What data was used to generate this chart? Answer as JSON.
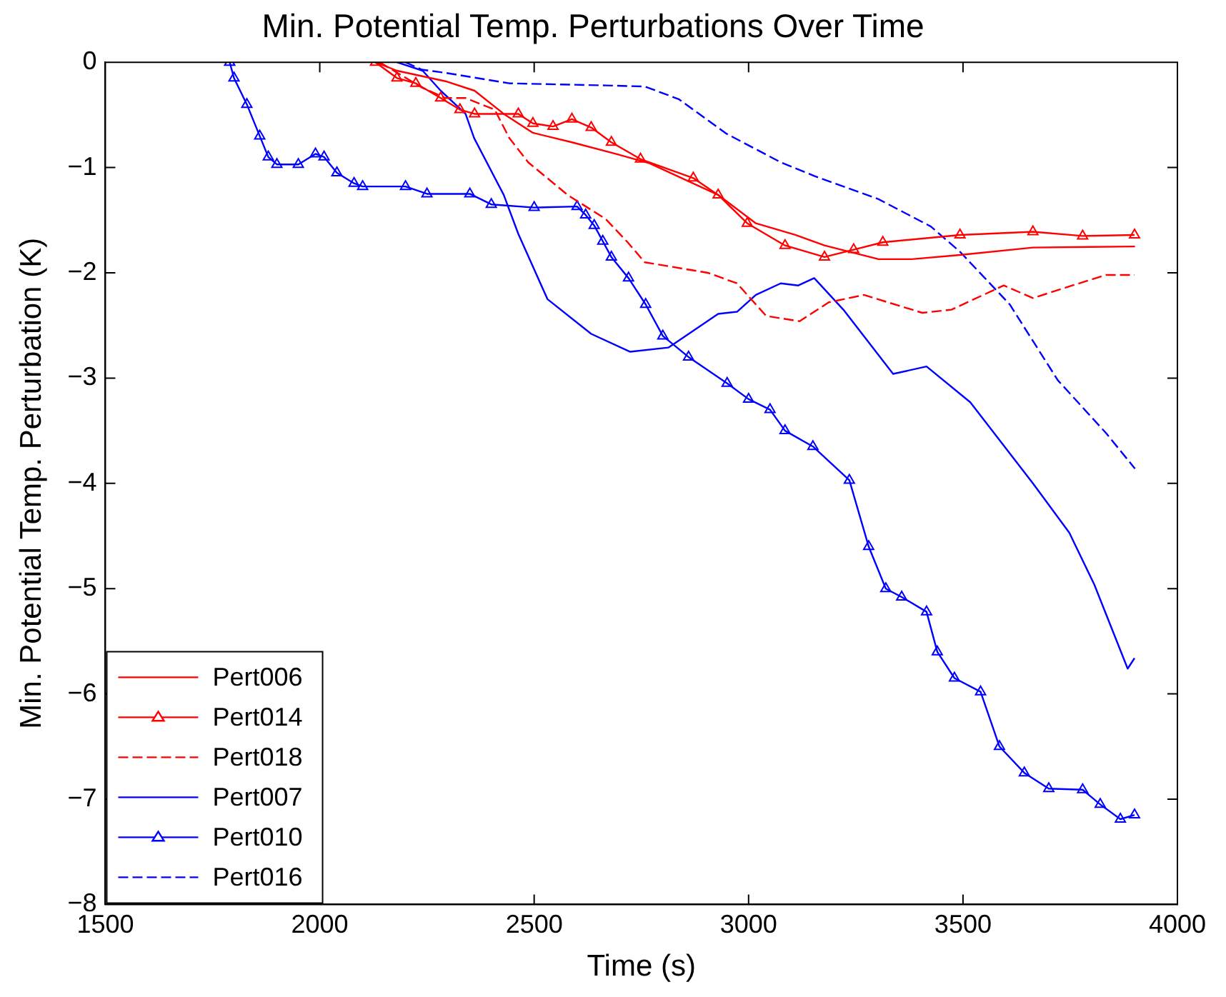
{
  "chart_data": {
    "type": "line",
    "title": "Min. Potential Temp. Perturbations Over Time",
    "xlabel": "Time (s)",
    "ylabel": "Min. Potential Temp. Perturbation (K)",
    "xlim": [
      1500,
      4000
    ],
    "xticks": [
      1500,
      2000,
      2500,
      3000,
      3500,
      4000
    ],
    "ylim": [
      -8,
      0
    ],
    "yticks": [
      -8,
      -7,
      -6,
      -5,
      -4,
      -3,
      -2,
      -1,
      0
    ],
    "grid": false,
    "legend": "bottom left",
    "series": [
      {
        "name": "Pert006",
        "color": "#ff0000",
        "line_style": "solid",
        "marker": "none",
        "x": [
          2130,
          2180,
          2293,
          2361,
          2429,
          2497,
          2588,
          2690,
          2769,
          2929,
          3017,
          3109,
          3177,
          3303,
          3381,
          3493,
          3663,
          3901
        ],
        "values": [
          0,
          -0.08,
          -0.18,
          -0.27,
          -0.49,
          -0.67,
          -0.76,
          -0.87,
          -0.96,
          -1.26,
          -1.53,
          -1.64,
          -1.74,
          -1.87,
          -1.87,
          -1.83,
          -1.76,
          -1.75
        ]
      },
      {
        "name": "Pert014",
        "color": "#ff0000",
        "line_style": "solid",
        "marker": "triangle",
        "x": [
          2130,
          2180,
          2224,
          2282,
          2327,
          2361,
          2463,
          2497,
          2544,
          2588,
          2633,
          2680,
          2748,
          2871,
          2929,
          2997,
          3085,
          3177,
          3245,
          3313,
          3493,
          3663,
          3779,
          3900
        ],
        "values": [
          0,
          -0.15,
          -0.2,
          -0.34,
          -0.45,
          -0.49,
          -0.49,
          -0.58,
          -0.61,
          -0.54,
          -0.62,
          -0.76,
          -0.92,
          -1.1,
          -1.26,
          -1.53,
          -1.74,
          -1.85,
          -1.78,
          -1.71,
          -1.64,
          -1.61,
          -1.65,
          -1.64
        ]
      },
      {
        "name": "Pert018",
        "color": "#ff0000",
        "line_style": "dashed",
        "marker": "none",
        "x": [
          2140,
          2238,
          2293,
          2340,
          2408,
          2442,
          2486,
          2578,
          2667,
          2718,
          2758,
          2905,
          2973,
          3041,
          3119,
          3187,
          3269,
          3405,
          3473,
          3595,
          3663,
          3755,
          3833,
          3900
        ],
        "values": [
          0,
          -0.24,
          -0.34,
          -0.34,
          -0.45,
          -0.72,
          -0.95,
          -1.26,
          -1.49,
          -1.71,
          -1.9,
          -2.0,
          -2.1,
          -2.41,
          -2.46,
          -2.28,
          -2.21,
          -2.38,
          -2.35,
          -2.12,
          -2.24,
          -2.12,
          -2.02,
          -2.02
        ]
      },
      {
        "name": "Pert007",
        "color": "#0000ff",
        "line_style": "solid",
        "marker": "none",
        "x": [
          2180,
          2240,
          2282,
          2340,
          2360,
          2429,
          2463,
          2531,
          2633,
          2724,
          2813,
          2929,
          2973,
          3017,
          3075,
          3116,
          3153,
          3221,
          3337,
          3415,
          3517,
          3663,
          3748,
          3806,
          3884,
          3900
        ],
        "values": [
          0,
          -0.08,
          -0.27,
          -0.49,
          -0.72,
          -1.26,
          -1.63,
          -2.25,
          -2.58,
          -2.75,
          -2.71,
          -2.39,
          -2.37,
          -2.21,
          -2.1,
          -2.12,
          -2.05,
          -2.35,
          -2.96,
          -2.89,
          -3.23,
          -4.0,
          -4.47,
          -4.96,
          -5.76,
          -5.66
        ]
      },
      {
        "name": "Pert010",
        "color": "#0000ff",
        "line_style": "solid",
        "marker": "triangle",
        "x": [
          1790,
          1800,
          1830,
          1860,
          1880,
          1900,
          1950,
          1990,
          2010,
          2040,
          2080,
          2100,
          2200,
          2250,
          2350,
          2400,
          2500,
          2600,
          2620,
          2640,
          2660,
          2680,
          2720,
          2760,
          2800,
          2860,
          2950,
          3000,
          3050,
          3085,
          3150,
          3235,
          3280,
          3320,
          3357,
          3415,
          3440,
          3480,
          3541,
          3585,
          3643,
          3700,
          3779,
          3820,
          3867,
          3900
        ],
        "values": [
          0,
          -0.15,
          -0.4,
          -0.7,
          -0.9,
          -0.97,
          -0.97,
          -0.87,
          -0.9,
          -1.05,
          -1.15,
          -1.18,
          -1.18,
          -1.25,
          -1.25,
          -1.35,
          -1.38,
          -1.37,
          -1.45,
          -1.55,
          -1.7,
          -1.85,
          -2.05,
          -2.3,
          -2.6,
          -2.8,
          -3.05,
          -3.2,
          -3.3,
          -3.5,
          -3.65,
          -3.97,
          -4.6,
          -5.0,
          -5.08,
          -5.22,
          -5.6,
          -5.85,
          -5.98,
          -6.5,
          -6.75,
          -6.9,
          -6.91,
          -7.05,
          -7.19,
          -7.15
        ]
      },
      {
        "name": "Pert016",
        "color": "#0000ff",
        "line_style": "dashed",
        "marker": "none",
        "x": [
          2200,
          2238,
          2293,
          2442,
          2667,
          2758,
          2837,
          2949,
          3075,
          3153,
          3303,
          3425,
          3493,
          3609,
          3721,
          3833,
          3901
        ],
        "values": [
          0,
          -0.07,
          -0.1,
          -0.2,
          -0.22,
          -0.23,
          -0.35,
          -0.68,
          -0.95,
          -1.08,
          -1.3,
          -1.56,
          -1.8,
          -2.3,
          -3.02,
          -3.52,
          -3.86
        ]
      }
    ]
  }
}
